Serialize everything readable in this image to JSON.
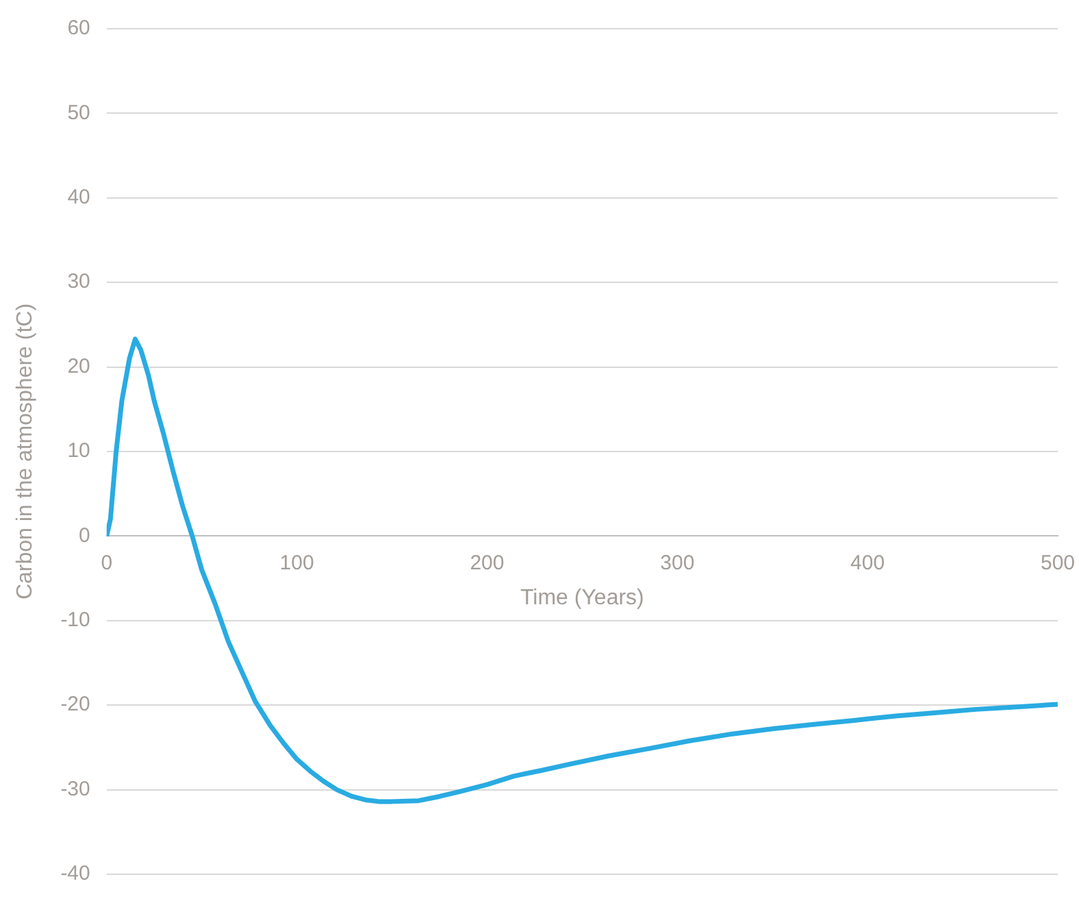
{
  "chart_data": {
    "type": "line",
    "xlabel": "Time (Years)",
    "ylabel": "Carbon in the atmosphere (tC)",
    "xlim": [
      0,
      500
    ],
    "xticks": [
      0,
      100,
      200,
      300,
      400,
      500
    ],
    "ylim": [
      -40,
      60
    ],
    "yticks": [
      -40,
      -30,
      -20,
      -10,
      0,
      10,
      20,
      30,
      40,
      50,
      60
    ],
    "grid": "y",
    "legend": false,
    "marker": "none",
    "line_style": "solid",
    "series": [
      {
        "color": "#29abe2",
        "x": [
          0,
          2,
          5,
          8,
          12,
          15,
          18,
          22,
          25,
          30,
          35,
          40,
          45,
          50,
          57,
          64,
          71,
          78,
          86,
          93,
          100,
          107,
          114,
          121,
          129,
          136,
          143,
          150,
          164,
          175,
          186,
          200,
          214,
          229,
          243,
          264,
          286,
          307,
          329,
          350,
          371,
          393,
          414,
          436,
          457,
          479,
          500
        ],
        "values": [
          0,
          2,
          10,
          16,
          21,
          23.3,
          22,
          19,
          16,
          12,
          7.6,
          3.5,
          0,
          -4,
          -8,
          -12.5,
          -16,
          -19.5,
          -22.4,
          -24.5,
          -26.4,
          -27.8,
          -29,
          -30,
          -30.8,
          -31.2,
          -31.4,
          -31.4,
          -31.3,
          -30.8,
          -30.2,
          -29.4,
          -28.4,
          -27.7,
          -27,
          -26,
          -25.1,
          -24.2,
          -23.4,
          -22.8,
          -22.3,
          -21.8,
          -21.3,
          -20.9,
          -20.5,
          -20.2,
          -19.9
        ]
      }
    ]
  }
}
